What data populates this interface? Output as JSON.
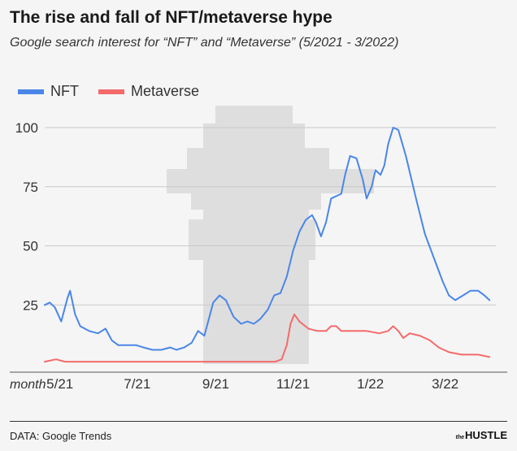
{
  "header": {
    "title": "The rise and fall of NFT/metaverse hype",
    "subtitle": "Google search interest for “NFT” and “Metaverse” (5/2021 - 3/2022)"
  },
  "footer": {
    "source": "DATA: Google Trends",
    "brand_small": "the",
    "brand_big": "HUSTLE"
  },
  "chart_data": {
    "type": "line",
    "title": "The rise and fall of NFT/metaverse hype",
    "subtitle": "Google search interest for “NFT” and “Metaverse” (5/2021 - 3/2022)",
    "xlabel": "month",
    "ylabel": "",
    "xlim": [
      "2021-04-19",
      "2022-04-10"
    ],
    "ylim": [
      0,
      100
    ],
    "yticks": [
      25,
      50,
      75,
      100
    ],
    "xticks": [
      {
        "label": "5/21",
        "date": "2021-05-01"
      },
      {
        "label": "7/21",
        "date": "2021-07-01"
      },
      {
        "label": "9/21",
        "date": "2021-09-01"
      },
      {
        "label": "11/21",
        "date": "2021-11-01"
      },
      {
        "label": "1/22",
        "date": "2022-01-01"
      },
      {
        "label": "3/22",
        "date": "2022-03-01"
      }
    ],
    "grid": "horizontal",
    "legend_position": "top-left",
    "series": [
      {
        "name": "NFT",
        "color": "#4a86e8",
        "points": [
          [
            "2021-04-19",
            25
          ],
          [
            "2021-04-23",
            26
          ],
          [
            "2021-04-27",
            24
          ],
          [
            "2021-05-02",
            18
          ],
          [
            "2021-05-07",
            28
          ],
          [
            "2021-05-09",
            31
          ],
          [
            "2021-05-13",
            21
          ],
          [
            "2021-05-17",
            16
          ],
          [
            "2021-05-24",
            14
          ],
          [
            "2021-05-31",
            13
          ],
          [
            "2021-06-06",
            15
          ],
          [
            "2021-06-11",
            10
          ],
          [
            "2021-06-16",
            8
          ],
          [
            "2021-06-23",
            8
          ],
          [
            "2021-06-30",
            8
          ],
          [
            "2021-07-06",
            7
          ],
          [
            "2021-07-13",
            6
          ],
          [
            "2021-07-20",
            6
          ],
          [
            "2021-07-27",
            7
          ],
          [
            "2021-08-01",
            6
          ],
          [
            "2021-08-07",
            7
          ],
          [
            "2021-08-13",
            9
          ],
          [
            "2021-08-18",
            14
          ],
          [
            "2021-08-23",
            12
          ],
          [
            "2021-08-26",
            18
          ],
          [
            "2021-08-30",
            26
          ],
          [
            "2021-09-04",
            29
          ],
          [
            "2021-09-09",
            27
          ],
          [
            "2021-09-15",
            20
          ],
          [
            "2021-09-21",
            17
          ],
          [
            "2021-09-26",
            18
          ],
          [
            "2021-10-01",
            17
          ],
          [
            "2021-10-06",
            19
          ],
          [
            "2021-10-12",
            23
          ],
          [
            "2021-10-17",
            29
          ],
          [
            "2021-10-22",
            30
          ],
          [
            "2021-10-27",
            37
          ],
          [
            "2021-11-01",
            48
          ],
          [
            "2021-11-06",
            56
          ],
          [
            "2021-11-11",
            61
          ],
          [
            "2021-11-16",
            63
          ],
          [
            "2021-11-19",
            60
          ],
          [
            "2021-11-23",
            54
          ],
          [
            "2021-11-27",
            60
          ],
          [
            "2021-12-01",
            70
          ],
          [
            "2021-12-05",
            71
          ],
          [
            "2021-12-09",
            72
          ],
          [
            "2021-12-12",
            80
          ],
          [
            "2021-12-16",
            88
          ],
          [
            "2021-12-21",
            87
          ],
          [
            "2021-12-26",
            78
          ],
          [
            "2021-12-29",
            70
          ],
          [
            "2022-01-02",
            75
          ],
          [
            "2022-01-05",
            82
          ],
          [
            "2022-01-09",
            80
          ],
          [
            "2022-01-12",
            84
          ],
          [
            "2022-01-15",
            93
          ],
          [
            "2022-01-19",
            100
          ],
          [
            "2022-01-23",
            99
          ],
          [
            "2022-01-29",
            88
          ],
          [
            "2022-02-06",
            70
          ],
          [
            "2022-02-13",
            55
          ],
          [
            "2022-02-20",
            45
          ],
          [
            "2022-02-27",
            35
          ],
          [
            "2022-03-04",
            29
          ],
          [
            "2022-03-09",
            27
          ],
          [
            "2022-03-15",
            29
          ],
          [
            "2022-03-21",
            31
          ],
          [
            "2022-03-27",
            31
          ],
          [
            "2022-04-01",
            29
          ],
          [
            "2022-04-05",
            27
          ]
        ]
      },
      {
        "name": "Metaverse",
        "color": "#f46a6a",
        "points": [
          [
            "2021-04-19",
            1
          ],
          [
            "2021-04-28",
            2
          ],
          [
            "2021-05-05",
            1
          ],
          [
            "2021-06-15",
            1
          ],
          [
            "2021-07-31",
            1
          ],
          [
            "2021-09-15",
            1
          ],
          [
            "2021-10-18",
            1
          ],
          [
            "2021-10-23",
            2
          ],
          [
            "2021-10-27",
            8
          ],
          [
            "2021-10-30",
            17
          ],
          [
            "2021-11-02",
            21
          ],
          [
            "2021-11-06",
            18
          ],
          [
            "2021-11-13",
            15
          ],
          [
            "2021-11-20",
            14
          ],
          [
            "2021-11-27",
            14
          ],
          [
            "2021-12-01",
            16
          ],
          [
            "2021-12-05",
            16
          ],
          [
            "2021-12-09",
            14
          ],
          [
            "2021-12-19",
            14
          ],
          [
            "2021-12-29",
            14
          ],
          [
            "2022-01-08",
            13
          ],
          [
            "2022-01-15",
            14
          ],
          [
            "2022-01-19",
            16
          ],
          [
            "2022-01-23",
            14
          ],
          [
            "2022-01-27",
            11
          ],
          [
            "2022-02-01",
            13
          ],
          [
            "2022-02-09",
            12
          ],
          [
            "2022-02-17",
            10
          ],
          [
            "2022-02-24",
            7
          ],
          [
            "2022-03-04",
            5
          ],
          [
            "2022-03-14",
            4
          ],
          [
            "2022-03-27",
            4
          ],
          [
            "2022-04-05",
            3
          ]
        ]
      }
    ]
  }
}
